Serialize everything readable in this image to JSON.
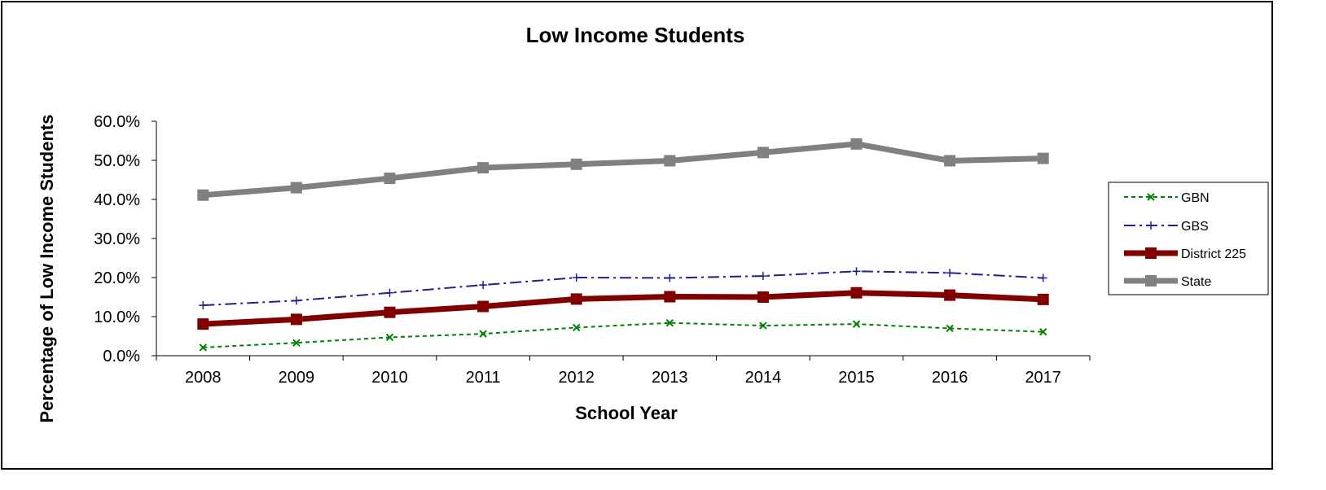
{
  "chart_data": {
    "type": "line",
    "title": "Low Income Students",
    "xlabel": "School Year",
    "ylabel": "Percentage of Low Income Students",
    "categories": [
      "2008",
      "2009",
      "2010",
      "2011",
      "2012",
      "2013",
      "2014",
      "2015",
      "2016",
      "2017"
    ],
    "ylim": [
      0,
      60
    ],
    "y_ticks": [
      "0.0%",
      "10.0%",
      "20.0%",
      "30.0%",
      "40.0%",
      "50.0%",
      "60.0%"
    ],
    "y_tick_values": [
      0,
      10,
      20,
      30,
      40,
      50,
      60
    ],
    "grid": false,
    "legend_position": "right",
    "series": [
      {
        "name": "GBN",
        "values": [
          2.1,
          3.3,
          4.7,
          5.6,
          7.2,
          8.4,
          7.7,
          8.1,
          7.0,
          6.1
        ],
        "color": "#008000",
        "style": "dotted",
        "marker": "x"
      },
      {
        "name": "GBS",
        "values": [
          12.9,
          14.1,
          16.1,
          18.1,
          20.0,
          19.9,
          20.4,
          21.6,
          21.2,
          19.9
        ],
        "color": "#1F1F8F",
        "style": "dashdot",
        "marker": "plus"
      },
      {
        "name": "District 225",
        "values": [
          8.1,
          9.3,
          11.1,
          12.6,
          14.5,
          15.1,
          15.0,
          16.1,
          15.5,
          14.4
        ],
        "color": "#800000",
        "style": "solid-thick",
        "marker": "square"
      },
      {
        "name": "State",
        "values": [
          41.1,
          43.0,
          45.4,
          48.1,
          49.0,
          49.9,
          52.0,
          54.2,
          49.9,
          50.5
        ],
        "color": "#808080",
        "style": "solid-thick",
        "marker": "square"
      }
    ]
  }
}
